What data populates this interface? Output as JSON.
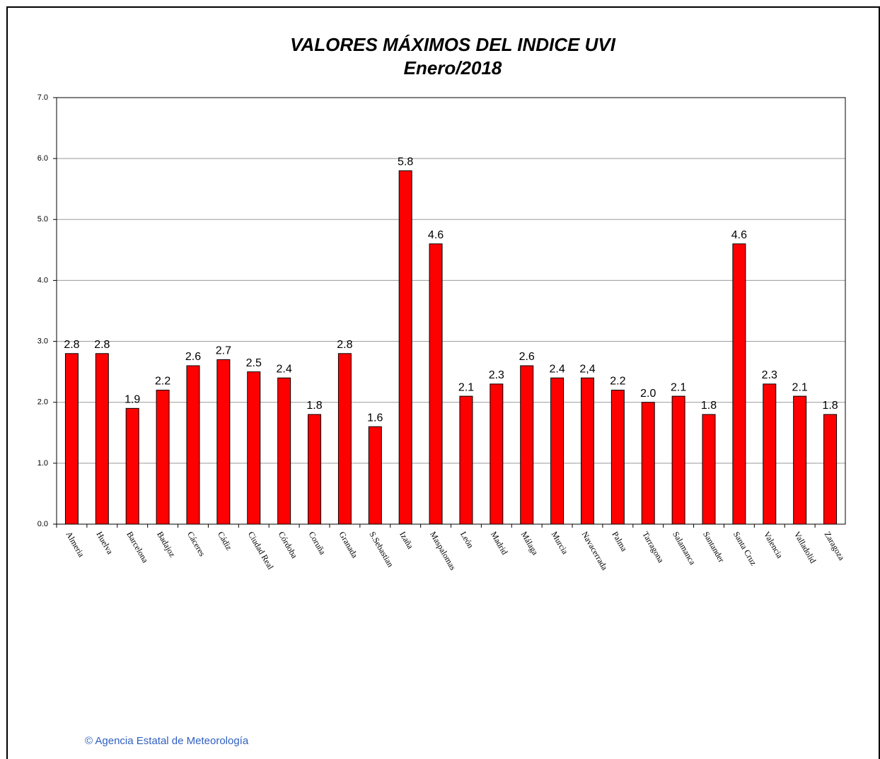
{
  "chart_data": {
    "type": "bar",
    "title": "VALORES MÁXIMOS DEL INDICE UVI",
    "subtitle": "Enero/2018",
    "categories": [
      "Almeria",
      "Huelva",
      "Barcelona",
      "Badajoz",
      "Cáceres",
      "Cádiz",
      "Ciudad Real",
      "Córdoba",
      "Coruña",
      "Granada",
      "S.Sebastian",
      "Izaña",
      "Maspalomas",
      "León",
      "Madrid",
      "Málaga",
      "Murcia",
      "Navacerrada",
      "Palma",
      "Tarragona",
      "Salamanca",
      "Santander",
      "Santa Cruz",
      "Valencia",
      "Valladolid",
      "Zaragoza"
    ],
    "values": [
      2.8,
      2.8,
      1.9,
      2.2,
      2.6,
      2.7,
      2.5,
      2.4,
      1.8,
      2.8,
      1.6,
      5.8,
      4.6,
      2.1,
      2.3,
      2.6,
      2.4,
      2.4,
      2.2,
      2.0,
      2.1,
      1.8,
      4.6,
      2.3,
      2.1,
      1.8
    ],
    "value_labels": [
      "2.8",
      "2.8",
      "1.9",
      "2.2",
      "2.6",
      "2.7",
      "2.5",
      "2.4",
      "1.8",
      "2.8",
      "1.6",
      "5.8",
      "4.6",
      "2.1",
      "2.3",
      "2.6",
      "2.4",
      "2,4",
      "2.2",
      "2.0",
      "2.1",
      "1.8",
      "4.6",
      "2.3",
      "2.1",
      "1.8"
    ],
    "color": "#ff0000",
    "ylim": [
      0,
      7
    ],
    "yticks": [
      {
        "value": 0,
        "label": "0.0"
      },
      {
        "value": 1,
        "label": "1.0"
      },
      {
        "value": 2,
        "label": "2.0"
      },
      {
        "value": 3,
        "label": "3.0"
      },
      {
        "value": 4,
        "label": "4.0"
      },
      {
        "value": 5,
        "label": "5.0"
      },
      {
        "value": 6,
        "label": "6.0"
      },
      {
        "value": 7,
        "label": "7.0"
      }
    ],
    "grid": true,
    "source": "© Agencia Estatal de Meteorología"
  }
}
